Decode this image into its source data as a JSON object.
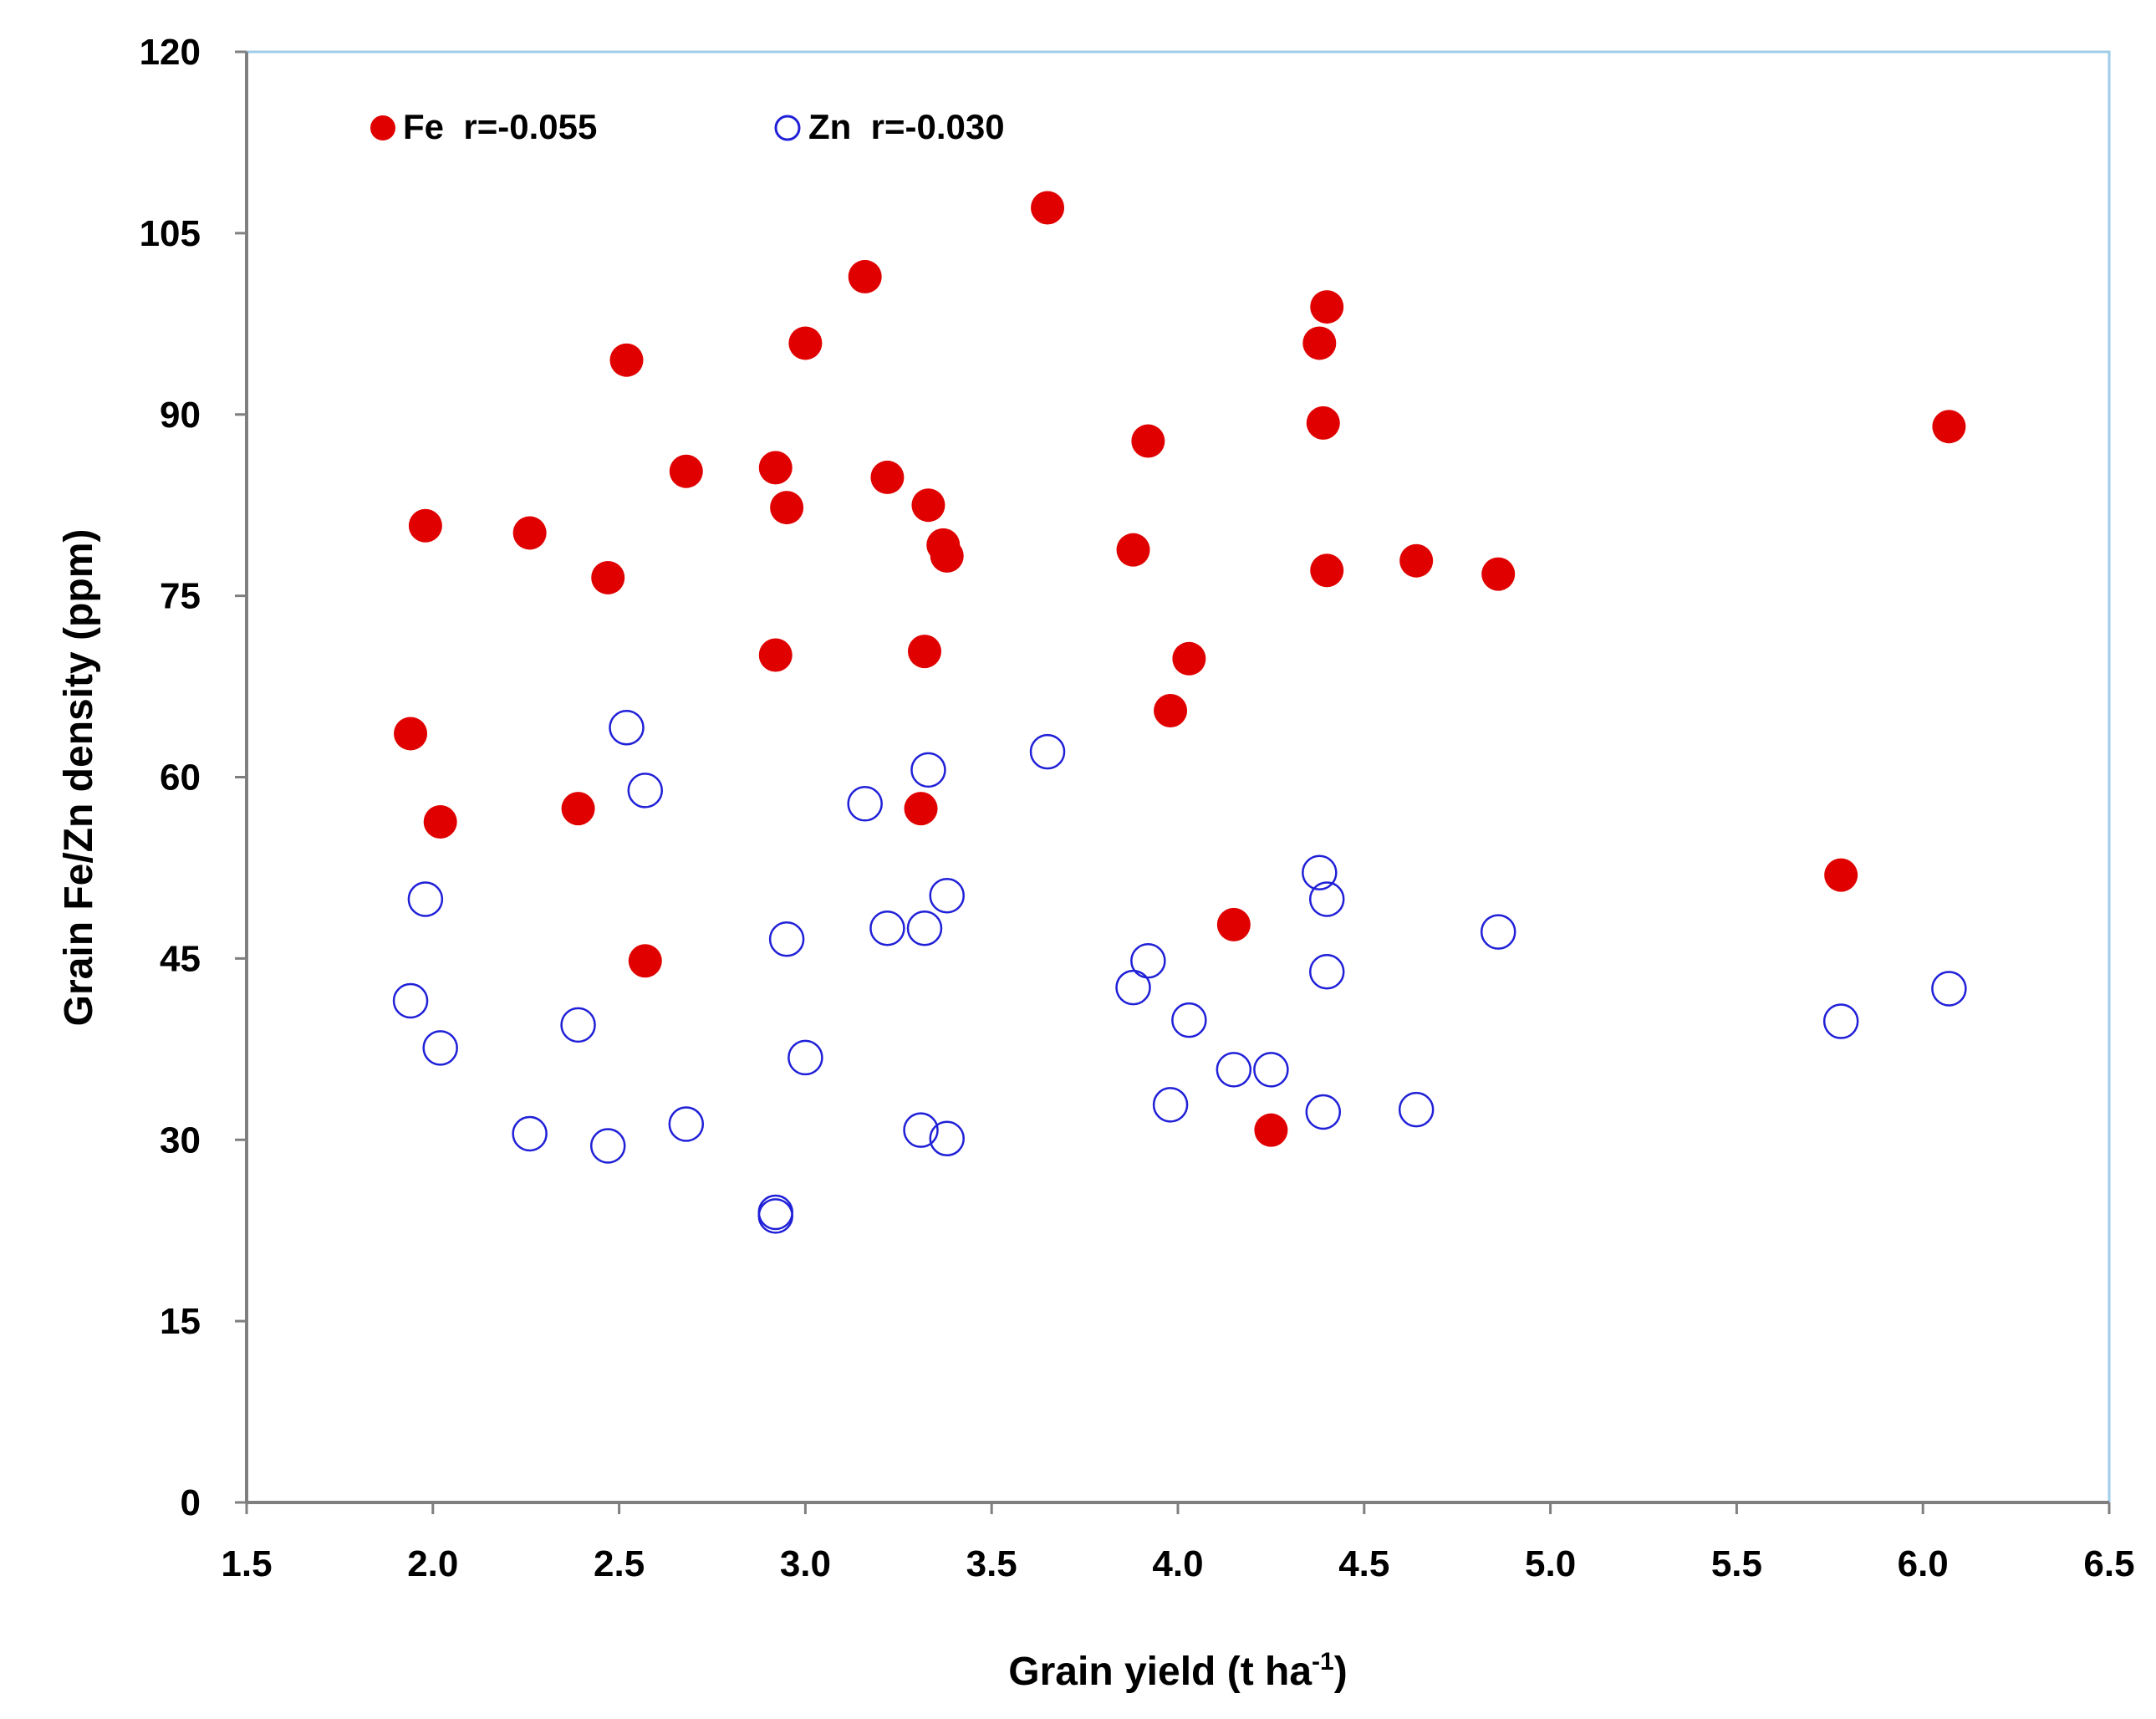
{
  "chart_data": {
    "type": "scatter",
    "title": "",
    "xlabel": "Grain yield (t ha",
    "xlabel_sup": "-1",
    "xlabel_end": ")",
    "ylabel": "Grain Fe/Zn density (ppm)",
    "xlim": [
      1.5,
      6.5
    ],
    "ylim": [
      0,
      120
    ],
    "x_ticks": [
      "1.5",
      "2.0",
      "2.5",
      "3.0",
      "3.5",
      "4.0",
      "4.5",
      "5.0",
      "5.5",
      "6.0",
      "6.5"
    ],
    "y_ticks": [
      "0",
      "15",
      "30",
      "45",
      "60",
      "75",
      "90",
      "105",
      "120"
    ],
    "grid": false,
    "legend_position": "top-left",
    "colors": {
      "fe": "#e00000",
      "zn": "#2020d8",
      "frame": "#9fcce8",
      "axis": "#7f7f7f"
    },
    "series": [
      {
        "name": "Fe",
        "legend_label": "Fe  r=-0.055",
        "marker": "filled-circle",
        "points": [
          [
            1.94,
            63.6
          ],
          [
            1.98,
            80.8
          ],
          [
            2.02,
            56.3
          ],
          [
            2.26,
            80.2
          ],
          [
            2.39,
            57.4
          ],
          [
            2.47,
            76.5
          ],
          [
            2.52,
            94.5
          ],
          [
            2.57,
            44.8
          ],
          [
            2.68,
            85.3
          ],
          [
            2.92,
            85.6
          ],
          [
            2.92,
            70.1
          ],
          [
            2.95,
            82.3
          ],
          [
            3.0,
            95.9
          ],
          [
            3.16,
            101.4
          ],
          [
            3.22,
            84.8
          ],
          [
            3.31,
            57.4
          ],
          [
            3.32,
            70.4
          ],
          [
            3.33,
            82.5
          ],
          [
            3.37,
            79.2
          ],
          [
            3.38,
            78.3
          ],
          [
            3.65,
            107.1
          ],
          [
            3.88,
            78.8
          ],
          [
            3.92,
            87.8
          ],
          [
            3.98,
            65.5
          ],
          [
            4.03,
            69.8
          ],
          [
            4.15,
            47.8
          ],
          [
            4.25,
            30.8
          ],
          [
            4.38,
            95.9
          ],
          [
            4.39,
            89.3
          ],
          [
            4.4,
            98.9
          ],
          [
            4.4,
            77.1
          ],
          [
            4.64,
            77.9
          ],
          [
            4.86,
            76.8
          ],
          [
            5.78,
            51.9
          ],
          [
            6.07,
            89.0
          ]
        ]
      },
      {
        "name": "Zn",
        "legend_label": "Zn  r=-0.030",
        "marker": "open-circle",
        "points": [
          [
            1.94,
            41.5
          ],
          [
            1.98,
            49.9
          ],
          [
            2.02,
            37.6
          ],
          [
            2.26,
            30.5
          ],
          [
            2.39,
            39.5
          ],
          [
            2.47,
            29.5
          ],
          [
            2.52,
            64.1
          ],
          [
            2.57,
            58.9
          ],
          [
            2.68,
            31.3
          ],
          [
            2.92,
            24.0
          ],
          [
            2.92,
            23.7
          ],
          [
            2.95,
            46.6
          ],
          [
            3.0,
            36.8
          ],
          [
            3.16,
            57.8
          ],
          [
            3.22,
            47.5
          ],
          [
            3.31,
            30.8
          ],
          [
            3.32,
            47.5
          ],
          [
            3.33,
            60.6
          ],
          [
            3.38,
            30.1
          ],
          [
            3.38,
            50.2
          ],
          [
            3.65,
            62.1
          ],
          [
            3.88,
            42.6
          ],
          [
            3.92,
            44.8
          ],
          [
            3.98,
            32.9
          ],
          [
            4.03,
            39.9
          ],
          [
            4.15,
            35.8
          ],
          [
            4.25,
            35.8
          ],
          [
            4.38,
            52.1
          ],
          [
            4.39,
            32.3
          ],
          [
            4.4,
            49.9
          ],
          [
            4.4,
            43.9
          ],
          [
            4.64,
            32.5
          ],
          [
            4.86,
            47.2
          ],
          [
            5.78,
            39.8
          ],
          [
            6.07,
            42.5
          ]
        ]
      }
    ]
  }
}
